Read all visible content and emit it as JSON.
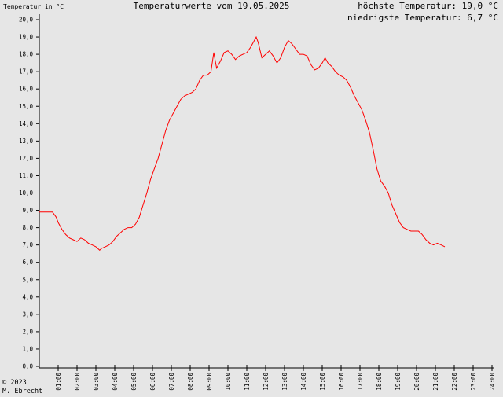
{
  "header": {
    "title": "Temperaturwerte vom 19.05.2025",
    "max_label": "höchste Temperatur: 19,0 °C",
    "min_label": "niedrigste Temperatur: 6,7 °C"
  },
  "footer": {
    "copyright_line1": "© 2023",
    "copyright_line2": "M. Ebrecht"
  },
  "colors": {
    "background": "#e6e6e6",
    "axis": "#000000",
    "series": "#ff0000"
  },
  "chart_data": {
    "type": "line",
    "title": "Temperaturwerte vom 19.05.2025",
    "ylabel": "Temperatur in °C",
    "xlabel": "",
    "xlim": [
      0,
      24
    ],
    "ylim": [
      0,
      20
    ],
    "grid": false,
    "y_tick_labels": [
      "0,0",
      "1,0",
      "2,0",
      "3,0",
      "4,0",
      "5,0",
      "6,0",
      "7,0",
      "8,0",
      "9,0",
      "10,0",
      "11,0",
      "12,0",
      "13,0",
      "14,0",
      "15,0",
      "16,0",
      "17,0",
      "18,0",
      "19,0",
      "20,0"
    ],
    "x_tick_labels": [
      "01:00",
      "02:00",
      "03:00",
      "04:00",
      "05:00",
      "06:00",
      "07:00",
      "08:00",
      "09:00",
      "10:00",
      "11:00",
      "12:00",
      "13:00",
      "14:00",
      "15:00",
      "16:00",
      "17:00",
      "18:00",
      "19:00",
      "20:00",
      "21:00",
      "22:00",
      "23:00",
      "24:00"
    ],
    "series": [
      {
        "points": [
          [
            0.0,
            8.9
          ],
          [
            0.4,
            8.9
          ],
          [
            0.7,
            8.9
          ],
          [
            0.9,
            8.6
          ],
          [
            1.0,
            8.3
          ],
          [
            1.2,
            7.9
          ],
          [
            1.4,
            7.6
          ],
          [
            1.6,
            7.4
          ],
          [
            1.8,
            7.3
          ],
          [
            2.0,
            7.2
          ],
          [
            2.2,
            7.4
          ],
          [
            2.4,
            7.3
          ],
          [
            2.6,
            7.1
          ],
          [
            2.8,
            7.0
          ],
          [
            3.0,
            6.9
          ],
          [
            3.2,
            6.7
          ],
          [
            3.3,
            6.8
          ],
          [
            3.5,
            6.9
          ],
          [
            3.7,
            7.0
          ],
          [
            3.9,
            7.2
          ],
          [
            4.1,
            7.5
          ],
          [
            4.3,
            7.7
          ],
          [
            4.5,
            7.9
          ],
          [
            4.7,
            8.0
          ],
          [
            4.9,
            8.0
          ],
          [
            5.1,
            8.2
          ],
          [
            5.3,
            8.6
          ],
          [
            5.5,
            9.3
          ],
          [
            5.7,
            10.0
          ],
          [
            5.9,
            10.8
          ],
          [
            6.1,
            11.4
          ],
          [
            6.3,
            12.0
          ],
          [
            6.5,
            12.8
          ],
          [
            6.7,
            13.6
          ],
          [
            6.9,
            14.2
          ],
          [
            7.1,
            14.6
          ],
          [
            7.3,
            15.0
          ],
          [
            7.5,
            15.4
          ],
          [
            7.7,
            15.6
          ],
          [
            7.9,
            15.7
          ],
          [
            8.1,
            15.8
          ],
          [
            8.3,
            16.0
          ],
          [
            8.5,
            16.5
          ],
          [
            8.7,
            16.8
          ],
          [
            8.9,
            16.8
          ],
          [
            9.1,
            17.0
          ],
          [
            9.25,
            18.1
          ],
          [
            9.4,
            17.2
          ],
          [
            9.6,
            17.6
          ],
          [
            9.8,
            18.1
          ],
          [
            10.0,
            18.2
          ],
          [
            10.2,
            18.0
          ],
          [
            10.4,
            17.7
          ],
          [
            10.6,
            17.9
          ],
          [
            10.8,
            18.0
          ],
          [
            11.0,
            18.1
          ],
          [
            11.2,
            18.4
          ],
          [
            11.4,
            18.8
          ],
          [
            11.5,
            19.0
          ],
          [
            11.6,
            18.7
          ],
          [
            11.8,
            17.8
          ],
          [
            12.0,
            18.0
          ],
          [
            12.2,
            18.2
          ],
          [
            12.4,
            17.9
          ],
          [
            12.6,
            17.5
          ],
          [
            12.8,
            17.8
          ],
          [
            13.0,
            18.4
          ],
          [
            13.2,
            18.8
          ],
          [
            13.4,
            18.6
          ],
          [
            13.6,
            18.3
          ],
          [
            13.8,
            18.0
          ],
          [
            14.0,
            18.0
          ],
          [
            14.2,
            17.9
          ],
          [
            14.4,
            17.4
          ],
          [
            14.6,
            17.1
          ],
          [
            14.8,
            17.2
          ],
          [
            15.0,
            17.5
          ],
          [
            15.15,
            17.8
          ],
          [
            15.3,
            17.5
          ],
          [
            15.5,
            17.3
          ],
          [
            15.7,
            17.0
          ],
          [
            15.9,
            16.8
          ],
          [
            16.1,
            16.7
          ],
          [
            16.3,
            16.5
          ],
          [
            16.5,
            16.1
          ],
          [
            16.7,
            15.6
          ],
          [
            16.9,
            15.2
          ],
          [
            17.1,
            14.8
          ],
          [
            17.3,
            14.2
          ],
          [
            17.5,
            13.5
          ],
          [
            17.7,
            12.5
          ],
          [
            17.9,
            11.4
          ],
          [
            18.1,
            10.7
          ],
          [
            18.3,
            10.4
          ],
          [
            18.5,
            10.0
          ],
          [
            18.7,
            9.3
          ],
          [
            18.9,
            8.8
          ],
          [
            19.1,
            8.3
          ],
          [
            19.3,
            8.0
          ],
          [
            19.5,
            7.9
          ],
          [
            19.7,
            7.8
          ],
          [
            19.9,
            7.8
          ],
          [
            20.1,
            7.8
          ],
          [
            20.3,
            7.6
          ],
          [
            20.5,
            7.3
          ],
          [
            20.7,
            7.1
          ],
          [
            20.9,
            7.0
          ],
          [
            21.1,
            7.1
          ],
          [
            21.3,
            7.0
          ],
          [
            21.5,
            6.9
          ]
        ]
      }
    ]
  }
}
